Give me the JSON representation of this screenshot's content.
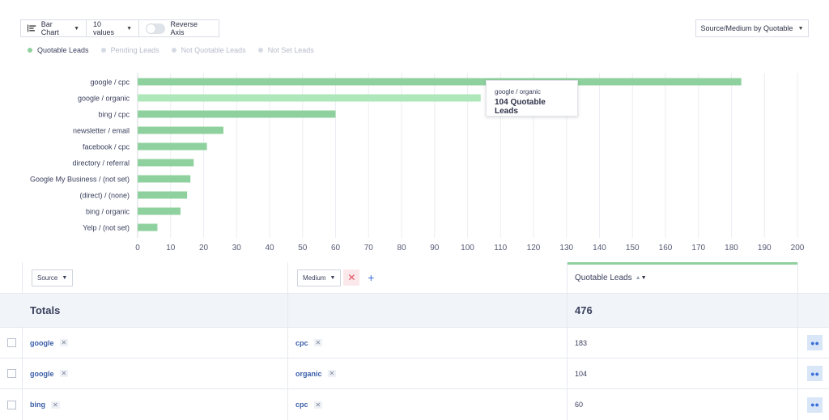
{
  "toolbar": {
    "chart_type": "Bar Chart",
    "values_count": "10 values",
    "reverse_axis": "Reverse Axis",
    "reverse_axis_on": false,
    "group_by": "Source/Medium by Quotable"
  },
  "legend": [
    {
      "label": "Quotable Leads",
      "active": true
    },
    {
      "label": "Pending Leads",
      "active": false
    },
    {
      "label": "Not Quotable Leads",
      "active": false
    },
    {
      "label": "Not Set Leads",
      "active": false
    }
  ],
  "colors": {
    "bar": "#8fd19e",
    "bar_highlight": "#aee8ba",
    "accent": "#8fd19e",
    "link": "#3a5ea8"
  },
  "chart_data": {
    "type": "bar",
    "orientation": "horizontal",
    "categories": [
      "google / cpc",
      "google / organic",
      "bing / cpc",
      "newsletter / email",
      "facebook / cpc",
      "directory / referral",
      "Google My Business / (not set)",
      "(direct) / (none)",
      "bing / organic",
      "Yelp / (not set)"
    ],
    "series": [
      {
        "name": "Quotable Leads",
        "values": [
          183,
          104,
          60,
          26,
          21,
          17,
          16,
          15,
          13,
          6
        ]
      }
    ],
    "xlim": [
      0,
      200
    ],
    "x_ticks": [
      0,
      10,
      20,
      30,
      40,
      50,
      60,
      70,
      80,
      90,
      100,
      110,
      120,
      130,
      140,
      150,
      160,
      170,
      180,
      190,
      200
    ],
    "grid": true,
    "highlighted_index": 1
  },
  "tooltip": {
    "label": "google / organic",
    "value": "104 Quotable Leads"
  },
  "table": {
    "columns": {
      "source": "Source",
      "medium": "Medium",
      "metric": "Quotable Leads"
    },
    "totals_label": "Totals",
    "totals_value": "476",
    "rows": [
      {
        "source": "google",
        "medium": "cpc",
        "value": "183"
      },
      {
        "source": "google",
        "medium": "organic",
        "value": "104"
      },
      {
        "source": "bing",
        "medium": "cpc",
        "value": "60"
      }
    ]
  },
  "icons": {
    "chart_type": "bar-chart-icon",
    "remove": "close-icon",
    "add": "plus-icon",
    "users": "users-icon",
    "sort": "sort-icon"
  }
}
